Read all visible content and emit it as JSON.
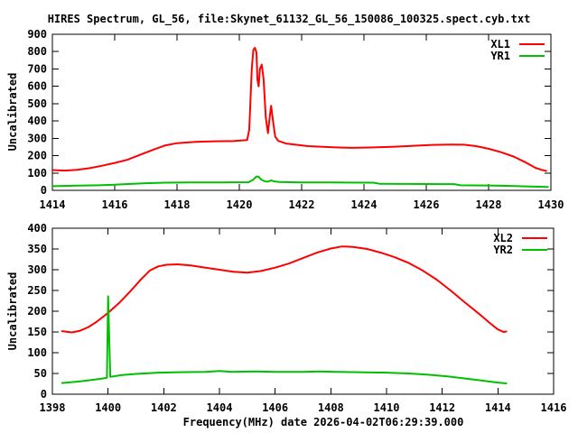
{
  "figure": {
    "background": "#ffffff",
    "axis_color": "#000000",
    "text_color": "#000000"
  },
  "chart_data": [
    {
      "type": "line",
      "title": "HIRES Spectrum, GL_56, file:Skynet_61132_GL_56_150086_100325.spect.cyb.txt",
      "xlabel": "",
      "ylabel": "Uncalibrated",
      "xlim": [
        1414,
        1430
      ],
      "ylim": [
        0,
        900
      ],
      "xticks": [
        1414,
        1416,
        1418,
        1420,
        1422,
        1424,
        1426,
        1428,
        1430
      ],
      "yticks": [
        0,
        100,
        200,
        300,
        400,
        500,
        600,
        700,
        800,
        900
      ],
      "grid": false,
      "legend_position": "top-right-inside",
      "series": [
        {
          "name": "XL1",
          "color": "#ff0000",
          "points": [
            [
              1414.0,
              117
            ],
            [
              1414.4,
              114
            ],
            [
              1414.8,
              118
            ],
            [
              1415.2,
              128
            ],
            [
              1415.6,
              142
            ],
            [
              1416.0,
              158
            ],
            [
              1416.4,
              176
            ],
            [
              1416.8,
              204
            ],
            [
              1417.2,
              232
            ],
            [
              1417.6,
              258
            ],
            [
              1418.0,
              272
            ],
            [
              1418.6,
              280
            ],
            [
              1419.2,
              283
            ],
            [
              1419.8,
              284
            ],
            [
              1420.25,
              290
            ],
            [
              1420.32,
              350
            ],
            [
              1420.4,
              700
            ],
            [
              1420.45,
              810
            ],
            [
              1420.5,
              822
            ],
            [
              1420.55,
              795
            ],
            [
              1420.58,
              640
            ],
            [
              1420.62,
              600
            ],
            [
              1420.66,
              700
            ],
            [
              1420.72,
              725
            ],
            [
              1420.78,
              640
            ],
            [
              1420.85,
              420
            ],
            [
              1420.92,
              330
            ],
            [
              1420.98,
              430
            ],
            [
              1421.02,
              488
            ],
            [
              1421.08,
              400
            ],
            [
              1421.15,
              310
            ],
            [
              1421.25,
              285
            ],
            [
              1421.5,
              270
            ],
            [
              1422.2,
              255
            ],
            [
              1423.0,
              248
            ],
            [
              1423.6,
              245
            ],
            [
              1424.2,
              247
            ],
            [
              1425.0,
              252
            ],
            [
              1425.6,
              257
            ],
            [
              1426.2,
              262
            ],
            [
              1426.8,
              264
            ],
            [
              1427.2,
              263
            ],
            [
              1427.6,
              255
            ],
            [
              1428.0,
              240
            ],
            [
              1428.4,
              220
            ],
            [
              1428.8,
              195
            ],
            [
              1429.2,
              160
            ],
            [
              1429.5,
              130
            ],
            [
              1429.7,
              118
            ],
            [
              1429.85,
              112
            ]
          ]
        },
        {
          "name": "YR1",
          "color": "#00c000",
          "points": [
            [
              1414.0,
              24
            ],
            [
              1414.8,
              27
            ],
            [
              1415.5,
              29
            ],
            [
              1416.0,
              32
            ],
            [
              1416.5,
              37
            ],
            [
              1417.0,
              41
            ],
            [
              1417.6,
              44
            ],
            [
              1418.4,
              46
            ],
            [
              1419.5,
              46
            ],
            [
              1420.3,
              47
            ],
            [
              1420.45,
              62
            ],
            [
              1420.55,
              80
            ],
            [
              1420.62,
              78
            ],
            [
              1420.7,
              62
            ],
            [
              1420.78,
              55
            ],
            [
              1420.88,
              50
            ],
            [
              1420.95,
              52
            ],
            [
              1421.03,
              58
            ],
            [
              1421.1,
              52
            ],
            [
              1421.3,
              48
            ],
            [
              1422.0,
              46
            ],
            [
              1423.0,
              45
            ],
            [
              1424.3,
              44
            ],
            [
              1424.5,
              38
            ],
            [
              1425.5,
              37
            ],
            [
              1426.4,
              36
            ],
            [
              1426.9,
              36
            ],
            [
              1427.1,
              29
            ],
            [
              1428.0,
              28
            ],
            [
              1428.6,
              26
            ],
            [
              1429.2,
              23
            ],
            [
              1429.9,
              20
            ]
          ]
        }
      ]
    },
    {
      "type": "line",
      "title": "",
      "xlabel": "Frequency(MHz) date 2026-04-02T06:29:39.000",
      "ylabel": "Uncalibrated",
      "xlim": [
        1398,
        1416
      ],
      "ylim": [
        0,
        400
      ],
      "xticks": [
        1398,
        1400,
        1402,
        1404,
        1406,
        1408,
        1410,
        1412,
        1414,
        1416
      ],
      "yticks": [
        0,
        50,
        100,
        150,
        200,
        250,
        300,
        350,
        400
      ],
      "grid": false,
      "legend_position": "top-right-inside",
      "series": [
        {
          "name": "XL2",
          "color": "#ff0000",
          "points": [
            [
              1398.35,
              152
            ],
            [
              1398.7,
              149
            ],
            [
              1399.0,
              153
            ],
            [
              1399.3,
              162
            ],
            [
              1399.6,
              175
            ],
            [
              1400.0,
              196
            ],
            [
              1400.4,
              220
            ],
            [
              1400.8,
              248
            ],
            [
              1401.2,
              278
            ],
            [
              1401.5,
              298
            ],
            [
              1401.8,
              308
            ],
            [
              1402.1,
              312
            ],
            [
              1402.5,
              313
            ],
            [
              1403.0,
              310
            ],
            [
              1403.5,
              305
            ],
            [
              1404.0,
              300
            ],
            [
              1404.5,
              295
            ],
            [
              1405.0,
              293
            ],
            [
              1405.5,
              297
            ],
            [
              1406.0,
              305
            ],
            [
              1406.5,
              315
            ],
            [
              1407.0,
              328
            ],
            [
              1407.5,
              341
            ],
            [
              1408.0,
              351
            ],
            [
              1408.4,
              356
            ],
            [
              1408.8,
              355
            ],
            [
              1409.3,
              350
            ],
            [
              1409.8,
              341
            ],
            [
              1410.3,
              330
            ],
            [
              1410.8,
              316
            ],
            [
              1411.3,
              298
            ],
            [
              1411.8,
              276
            ],
            [
              1412.3,
              250
            ],
            [
              1412.8,
              222
            ],
            [
              1413.3,
              195
            ],
            [
              1413.7,
              172
            ],
            [
              1414.0,
              156
            ],
            [
              1414.2,
              150
            ],
            [
              1414.3,
              151
            ]
          ]
        },
        {
          "name": "YR2",
          "color": "#00c000",
          "points": [
            [
              1398.35,
              27
            ],
            [
              1399.0,
              31
            ],
            [
              1399.5,
              35
            ],
            [
              1399.9,
              39
            ],
            [
              1399.96,
              40
            ],
            [
              1400.0,
              236
            ],
            [
              1400.08,
              42
            ],
            [
              1400.5,
              46
            ],
            [
              1401.0,
              49
            ],
            [
              1401.8,
              52
            ],
            [
              1402.5,
              53
            ],
            [
              1403.5,
              54
            ],
            [
              1404.0,
              56
            ],
            [
              1404.4,
              54
            ],
            [
              1405.3,
              55
            ],
            [
              1406.0,
              54
            ],
            [
              1407.0,
              54
            ],
            [
              1407.6,
              55
            ],
            [
              1408.2,
              54
            ],
            [
              1409.0,
              53
            ],
            [
              1410.0,
              52
            ],
            [
              1410.8,
              50
            ],
            [
              1411.5,
              47
            ],
            [
              1412.2,
              43
            ],
            [
              1412.8,
              38
            ],
            [
              1413.4,
              33
            ],
            [
              1414.0,
              28
            ],
            [
              1414.3,
              26
            ]
          ]
        }
      ]
    }
  ]
}
